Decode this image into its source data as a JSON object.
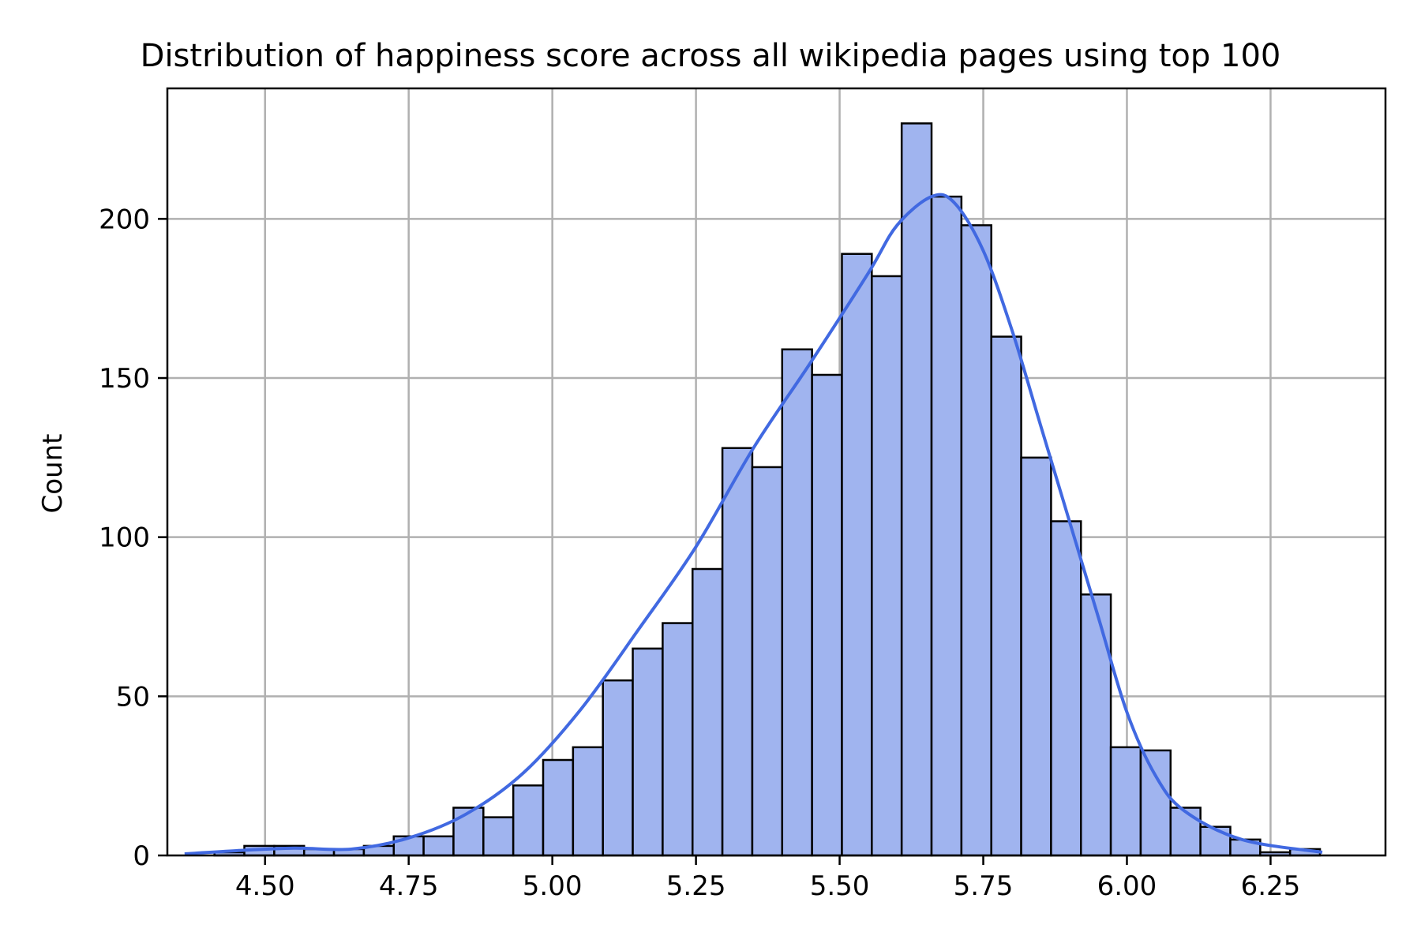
{
  "chart_data": {
    "type": "bar",
    "subtype": "histogram_with_kde",
    "title": "Distribution of happiness score across all wikipedia pages using top 100",
    "xlabel": "",
    "ylabel": "Count",
    "xlim": [
      4.33,
      6.45
    ],
    "ylim": [
      0,
      241
    ],
    "xticks": [
      4.5,
      4.75,
      5.0,
      5.25,
      5.5,
      5.75,
      6.0,
      6.25
    ],
    "xtick_labels": [
      "4.50",
      "4.75",
      "5.00",
      "5.25",
      "5.50",
      "5.75",
      "6.00",
      "6.25"
    ],
    "yticks": [
      0,
      50,
      100,
      150,
      200
    ],
    "ytick_labels": [
      "0",
      "50",
      "100",
      "150",
      "200"
    ],
    "grid": true,
    "bin_start": 4.36,
    "bin_width": 0.052,
    "values": [
      0,
      1,
      3,
      3,
      2,
      2,
      3,
      6,
      6,
      15,
      12,
      22,
      30,
      34,
      55,
      65,
      73,
      90,
      128,
      122,
      159,
      151,
      189,
      182,
      230,
      207,
      198,
      163,
      125,
      105,
      82,
      34,
      33,
      15,
      9,
      5,
      1,
      2
    ],
    "kde": {
      "x": [
        4.36,
        4.45,
        4.55,
        4.65,
        4.75,
        4.85,
        4.95,
        5.05,
        5.15,
        5.25,
        5.35,
        5.45,
        5.55,
        5.6,
        5.66,
        5.7,
        5.75,
        5.8,
        5.85,
        5.9,
        5.95,
        6.0,
        6.05,
        6.1,
        6.2,
        6.34
      ],
      "y": [
        0.5,
        1.5,
        2.3,
        2.0,
        5.5,
        13,
        26,
        46,
        71,
        97,
        128,
        155,
        183,
        198,
        207,
        205,
        190,
        165,
        135,
        105,
        75,
        45,
        25,
        14,
        5,
        1
      ]
    }
  }
}
